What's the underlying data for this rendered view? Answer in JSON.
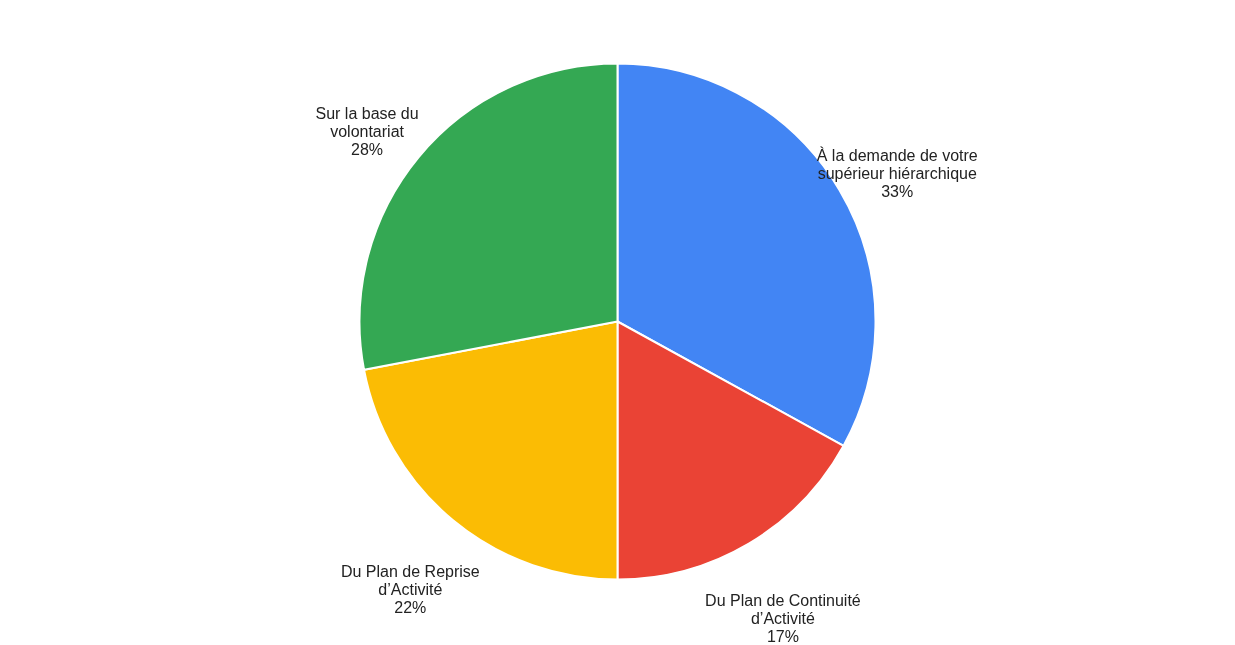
{
  "chart_data": {
    "type": "pie",
    "categories": [
      "À la demande de votre\nsupérieur hiérarchique",
      "Du Plan de Continuité\nd’Activité",
      "Du Plan de Reprise\nd’Activité",
      "Sur la base du\nvolontariat"
    ],
    "values": [
      33,
      17,
      22,
      28
    ],
    "value_labels": [
      "33%",
      "17%",
      "22%",
      "28%"
    ],
    "colors": [
      "#4285f4",
      "#ea4335",
      "#fbbc04",
      "#34a853"
    ],
    "legend": false
  }
}
